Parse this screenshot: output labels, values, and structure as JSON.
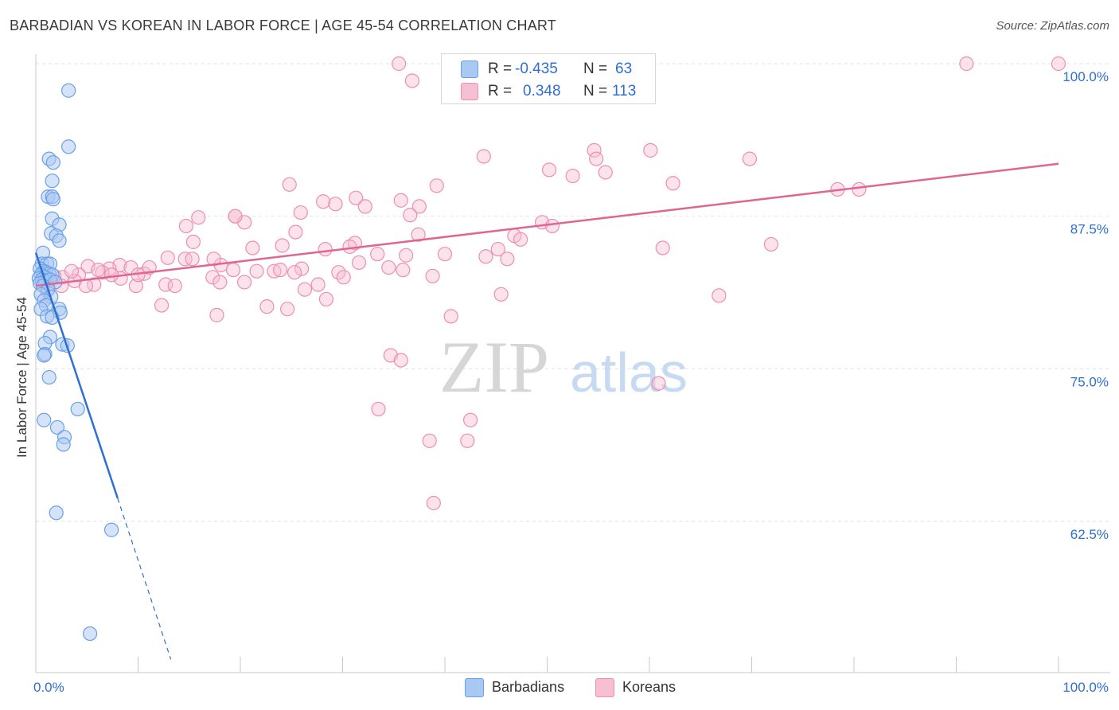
{
  "header": {
    "title": "BARBADIAN VS KOREAN IN LABOR FORCE | AGE 45-54 CORRELATION CHART",
    "source": "Source: ZipAtlas.com"
  },
  "watermark": {
    "zip": "ZIP",
    "atlas": "atlas"
  },
  "stats": {
    "barbadians": {
      "r_label": "R =",
      "r_value": "-0.435",
      "n_label": "N =",
      "n_value": "63"
    },
    "koreans": {
      "r_label": "R =",
      "r_value": "0.348",
      "n_label": "N =",
      "n_value": "113"
    }
  },
  "colors": {
    "barbadians": "#6aa0e8",
    "barbadians_fill": "#a9c8f2",
    "barbadians_line": "#2f6fd1",
    "koreans": "#ec8fb0",
    "koreans_fill": "#f6bfd2",
    "koreans_line": "#e06592",
    "axis_label": "#2f6fd1",
    "grid": "#e2e2e2"
  },
  "chart_data": {
    "type": "scatter",
    "title": "BARBADIAN VS KOREAN IN LABOR FORCE | AGE 45-54 CORRELATION CHART",
    "xlabel": "",
    "ylabel": "In Labor Force | Age 45-54",
    "xlim": [
      0,
      100
    ],
    "ylim": [
      50,
      101
    ],
    "x_tick_labels": [
      "0.0%",
      "100.0%"
    ],
    "y_ticks": [
      62.5,
      75.0,
      87.5,
      100.0
    ],
    "y_tick_labels": [
      "62.5%",
      "75.0%",
      "87.5%",
      "100.0%"
    ],
    "grid": true,
    "legend_position": "bottom-center",
    "series": [
      {
        "name": "Barbadians",
        "trend": {
          "x": [
            0.0,
            8.0
          ],
          "y": [
            84.5,
            64.4
          ],
          "dashed_to": [
            13.2,
            51.2
          ]
        },
        "points": [
          [
            3.2,
            97.8
          ],
          [
            3.2,
            93.2
          ],
          [
            1.3,
            92.2
          ],
          [
            1.7,
            91.9
          ],
          [
            1.6,
            90.4
          ],
          [
            1.2,
            89.1
          ],
          [
            1.6,
            89.1
          ],
          [
            1.7,
            88.9
          ],
          [
            1.6,
            87.3
          ],
          [
            2.3,
            86.8
          ],
          [
            1.5,
            86.1
          ],
          [
            2.0,
            85.9
          ],
          [
            2.3,
            85.5
          ],
          [
            0.7,
            84.5
          ],
          [
            0.6,
            83.6
          ],
          [
            1.1,
            83.6
          ],
          [
            1.4,
            83.6
          ],
          [
            0.4,
            83.2
          ],
          [
            0.8,
            83.0
          ],
          [
            1.0,
            82.9
          ],
          [
            1.3,
            82.8
          ],
          [
            1.6,
            82.7
          ],
          [
            0.5,
            82.7
          ],
          [
            0.9,
            82.5
          ],
          [
            0.3,
            82.4
          ],
          [
            0.6,
            82.3
          ],
          [
            0.9,
            82.2
          ],
          [
            1.4,
            82.3
          ],
          [
            1.9,
            82.1
          ],
          [
            0.4,
            82.0
          ],
          [
            0.7,
            81.8
          ],
          [
            1.2,
            81.5
          ],
          [
            0.5,
            81.1
          ],
          [
            1.5,
            80.9
          ],
          [
            0.8,
            80.6
          ],
          [
            1.0,
            80.2
          ],
          [
            0.5,
            79.9
          ],
          [
            2.3,
            79.9
          ],
          [
            2.4,
            79.6
          ],
          [
            1.1,
            79.3
          ],
          [
            1.6,
            79.2
          ],
          [
            1.4,
            77.6
          ],
          [
            0.9,
            77.1
          ],
          [
            2.6,
            77.0
          ],
          [
            3.1,
            76.9
          ],
          [
            0.9,
            76.2
          ],
          [
            0.8,
            76.1
          ],
          [
            1.3,
            74.3
          ],
          [
            4.1,
            71.7
          ],
          [
            0.8,
            70.8
          ],
          [
            2.1,
            70.2
          ],
          [
            2.8,
            69.4
          ],
          [
            2.7,
            68.8
          ],
          [
            2.0,
            63.2
          ],
          [
            7.4,
            61.8
          ],
          [
            5.3,
            53.3
          ]
        ]
      },
      {
        "name": "Koreans",
        "trend": {
          "x": [
            0.0,
            100.0
          ],
          "y": [
            81.8,
            91.8
          ]
        },
        "points": [
          [
            35.5,
            100.0
          ],
          [
            40.5,
            100.0
          ],
          [
            91.0,
            100.0
          ],
          [
            100.0,
            100.0
          ],
          [
            36.8,
            98.6
          ],
          [
            54.6,
            92.9
          ],
          [
            60.1,
            92.9
          ],
          [
            54.8,
            92.2
          ],
          [
            43.8,
            92.4
          ],
          [
            69.8,
            92.2
          ],
          [
            55.7,
            91.1
          ],
          [
            50.2,
            91.3
          ],
          [
            52.5,
            90.8
          ],
          [
            24.8,
            90.1
          ],
          [
            39.2,
            90.0
          ],
          [
            62.3,
            90.2
          ],
          [
            78.4,
            89.7
          ],
          [
            80.5,
            89.7
          ],
          [
            31.3,
            89.0
          ],
          [
            35.7,
            88.8
          ],
          [
            28.1,
            88.7
          ],
          [
            29.3,
            88.5
          ],
          [
            32.2,
            88.3
          ],
          [
            37.5,
            88.3
          ],
          [
            25.9,
            87.8
          ],
          [
            36.6,
            87.6
          ],
          [
            15.9,
            87.4
          ],
          [
            19.5,
            87.5
          ],
          [
            20.4,
            87.0
          ],
          [
            49.5,
            87.0
          ],
          [
            50.5,
            86.7
          ],
          [
            25.4,
            86.2
          ],
          [
            37.4,
            86.0
          ],
          [
            46.8,
            85.9
          ],
          [
            47.4,
            85.6
          ],
          [
            15.4,
            85.4
          ],
          [
            21.2,
            84.9
          ],
          [
            31.2,
            85.3
          ],
          [
            24.1,
            85.1
          ],
          [
            28.3,
            84.8
          ],
          [
            30.7,
            85.0
          ],
          [
            45.2,
            84.8
          ],
          [
            33.4,
            84.4
          ],
          [
            44.0,
            84.2
          ],
          [
            46.1,
            84.0
          ],
          [
            31.6,
            83.7
          ],
          [
            18.1,
            83.5
          ],
          [
            12.9,
            84.1
          ],
          [
            14.6,
            84.0
          ],
          [
            26.0,
            83.2
          ],
          [
            19.3,
            83.1
          ],
          [
            21.6,
            83.0
          ],
          [
            25.3,
            82.9
          ],
          [
            29.6,
            82.9
          ],
          [
            34.5,
            83.3
          ],
          [
            35.9,
            83.1
          ],
          [
            23.3,
            83.0
          ],
          [
            8.2,
            83.5
          ],
          [
            9.3,
            83.3
          ],
          [
            5.1,
            83.4
          ],
          [
            7.2,
            83.2
          ],
          [
            6.5,
            82.9
          ],
          [
            4.2,
            82.7
          ],
          [
            10.6,
            82.8
          ],
          [
            2.6,
            82.5
          ],
          [
            3.8,
            82.2
          ],
          [
            5.7,
            81.9
          ],
          [
            8.3,
            82.4
          ],
          [
            9.8,
            81.8
          ],
          [
            12.7,
            81.9
          ],
          [
            17.3,
            82.5
          ],
          [
            12.3,
            80.2
          ],
          [
            22.6,
            80.1
          ],
          [
            17.7,
            79.4
          ],
          [
            24.6,
            79.9
          ],
          [
            26.3,
            81.5
          ],
          [
            28.4,
            80.7
          ],
          [
            45.5,
            81.1
          ],
          [
            66.8,
            81.0
          ],
          [
            40.6,
            79.3
          ],
          [
            18.0,
            82.1
          ],
          [
            20.4,
            82.1
          ],
          [
            2.5,
            81.8
          ],
          [
            1.1,
            81.4
          ],
          [
            19.5,
            87.5
          ],
          [
            14.7,
            86.7
          ],
          [
            34.7,
            76.1
          ],
          [
            35.7,
            75.7
          ],
          [
            60.9,
            73.8
          ],
          [
            33.5,
            71.7
          ],
          [
            42.5,
            70.8
          ],
          [
            38.5,
            69.1
          ],
          [
            42.2,
            69.1
          ],
          [
            38.9,
            64.0
          ],
          [
            61.3,
            84.9
          ],
          [
            71.9,
            85.2
          ],
          [
            7.4,
            82.7
          ],
          [
            3.5,
            83.0
          ],
          [
            1.8,
            82.6
          ],
          [
            4.9,
            81.8
          ],
          [
            15.3,
            84.0
          ],
          [
            6.1,
            83.1
          ],
          [
            10.0,
            82.7
          ],
          [
            13.6,
            81.8
          ],
          [
            11.1,
            83.3
          ],
          [
            40.0,
            84.4
          ],
          [
            36.2,
            84.3
          ],
          [
            23.9,
            83.1
          ],
          [
            17.4,
            84.0
          ],
          [
            27.6,
            81.9
          ],
          [
            38.8,
            82.6
          ],
          [
            30.1,
            82.5
          ]
        ]
      }
    ]
  }
}
